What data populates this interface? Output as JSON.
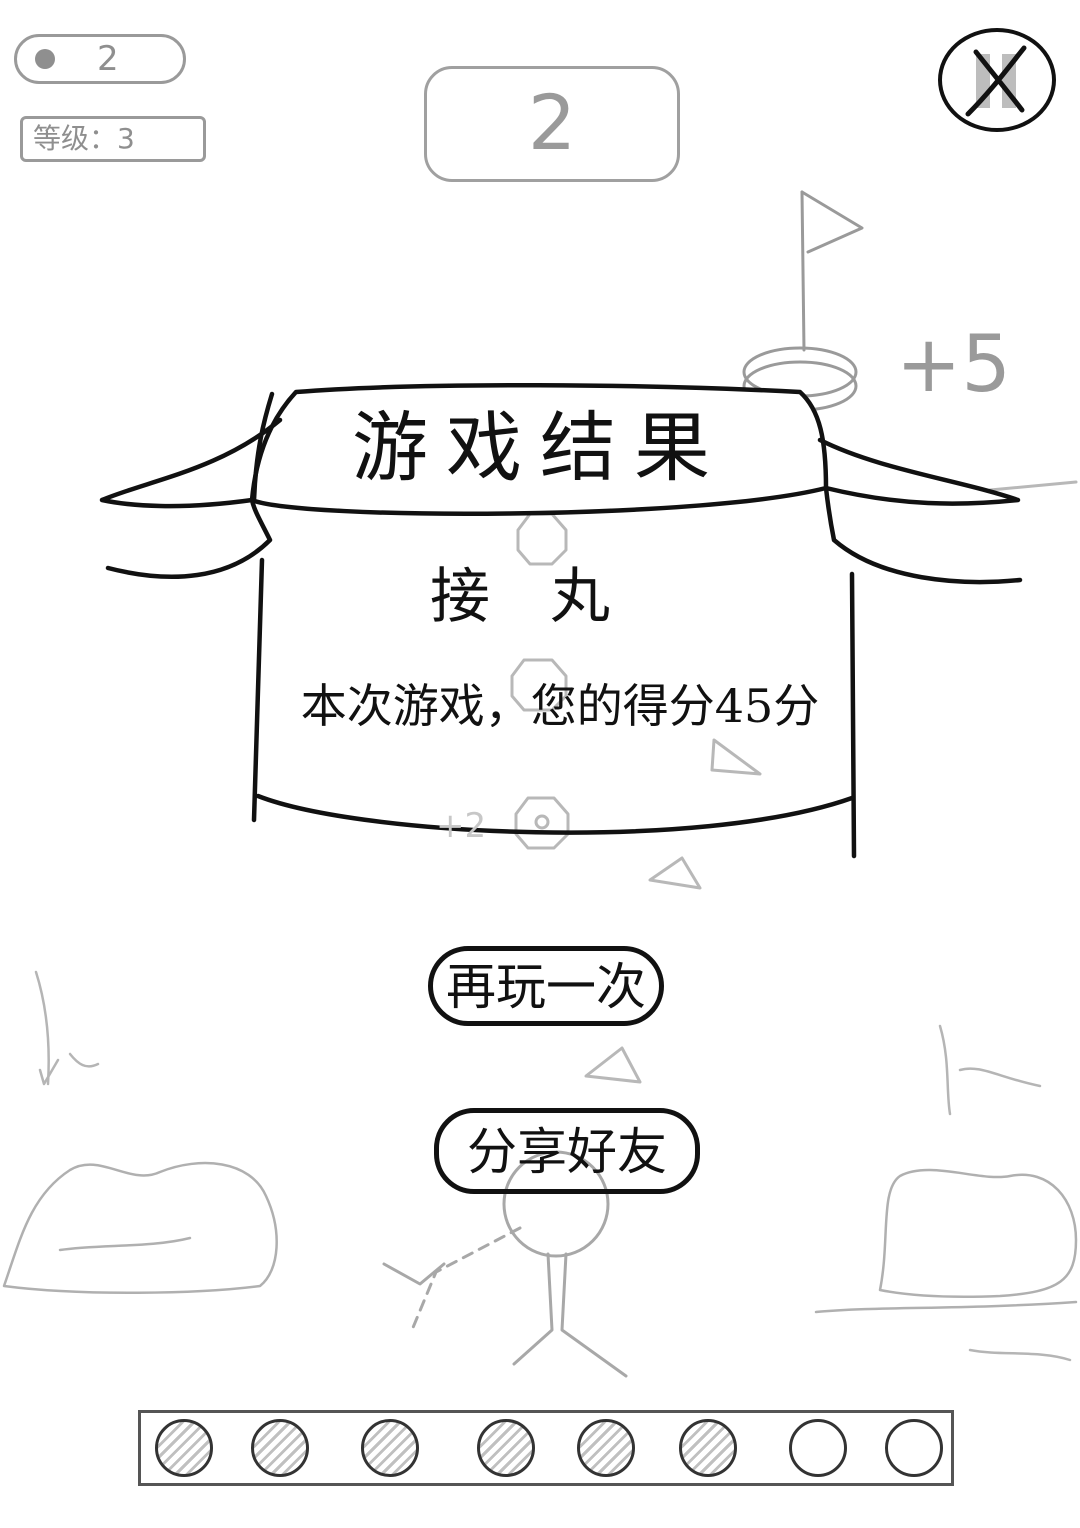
{
  "hud": {
    "balls_remaining": "2",
    "level_label": "等级：3",
    "score": "2",
    "close_button": "close-icon"
  },
  "field": {
    "bonus_flag": "+5",
    "bonus_peg": "+2"
  },
  "result": {
    "title": "游戏结果",
    "name": "接丸",
    "score_text": "本次游戏，您的得分45分"
  },
  "buttons": {
    "replay_label": "再玩一次",
    "share_label": "分享好友"
  },
  "tray": {
    "slots": [
      "used",
      "used",
      "used",
      "used",
      "used",
      "used",
      "empty",
      "empty"
    ]
  },
  "colors": {
    "ink": "#111111",
    "faded": "#9a9a9a",
    "background": "#ffffff"
  }
}
